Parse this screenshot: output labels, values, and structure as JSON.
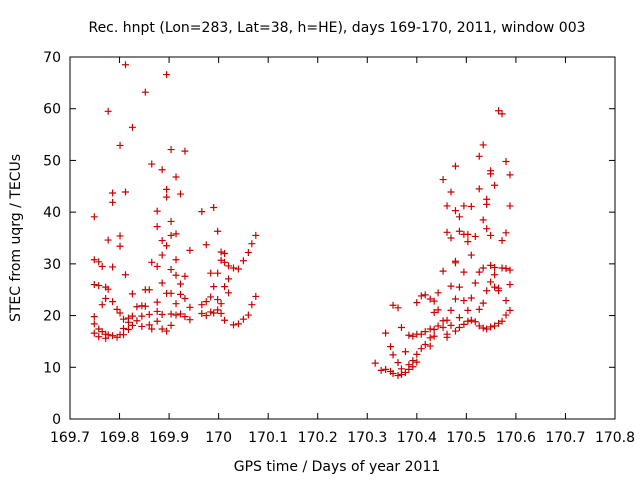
{
  "chart_data": {
    "type": "scatter",
    "title": "Rec. hnpt (Lon=283, Lat=38, h=HE), days 169-170, 2011, window 003",
    "xlabel": "GPS time / Days of year 2011",
    "ylabel": "STEC from uqrg / TECUs",
    "xlim": [
      169.7,
      170.8
    ],
    "ylim": [
      0,
      70
    ],
    "x_ticks": [
      169.7,
      169.8,
      169.9,
      170.0,
      170.1,
      170.2,
      170.3,
      170.4,
      170.5,
      170.6,
      170.7,
      170.8
    ],
    "x_tick_labels": [
      "169.7",
      "169.8",
      "169.9",
      "170",
      "170.1",
      "170.2",
      "170.3",
      "170.4",
      "170.5",
      "170.6",
      "170.7",
      "170.8"
    ],
    "y_ticks": [
      0,
      10,
      20,
      30,
      40,
      50,
      60,
      70
    ],
    "y_tick_labels": [
      "0",
      "10",
      "20",
      "30",
      "40",
      "50",
      "60",
      "70"
    ],
    "grid": false,
    "marker": "+",
    "marker_color": "#cc0000",
    "series": [
      {
        "points": [
          [
            169.749,
            39.1
          ],
          [
            169.749,
            30.8
          ],
          [
            169.749,
            26.0
          ],
          [
            169.749,
            19.8
          ],
          [
            169.749,
            18.4
          ],
          [
            169.749,
            16.6
          ],
          [
            169.758,
            30.4
          ],
          [
            169.758,
            25.8
          ],
          [
            169.758,
            17.4
          ],
          [
            169.758,
            15.9
          ],
          [
            169.765,
            29.5
          ],
          [
            169.765,
            22.1
          ],
          [
            169.765,
            16.9
          ],
          [
            169.772,
            25.5
          ],
          [
            169.772,
            23.3
          ],
          [
            169.772,
            16.4
          ],
          [
            169.772,
            15.6
          ],
          [
            169.777,
            59.5
          ],
          [
            169.777,
            34.6
          ],
          [
            169.777,
            25.1
          ],
          [
            169.777,
            16.3
          ],
          [
            169.786,
            43.7
          ],
          [
            169.786,
            41.9
          ],
          [
            169.786,
            29.4
          ],
          [
            169.786,
            22.7
          ],
          [
            169.786,
            16.1
          ],
          [
            169.795,
            21.2
          ],
          [
            169.795,
            15.8
          ],
          [
            169.801,
            52.9
          ],
          [
            169.801,
            35.4
          ],
          [
            169.801,
            33.4
          ],
          [
            169.801,
            20.5
          ],
          [
            169.801,
            16.3
          ],
          [
            169.808,
            19.3
          ],
          [
            169.808,
            17.5
          ],
          [
            169.808,
            16.3
          ],
          [
            169.812,
            68.5
          ],
          [
            169.812,
            43.9
          ],
          [
            169.812,
            27.9
          ],
          [
            169.818,
            19.5
          ],
          [
            169.818,
            18.7
          ],
          [
            169.818,
            17.3
          ],
          [
            169.826,
            56.4
          ],
          [
            169.826,
            24.2
          ],
          [
            169.826,
            19.9
          ],
          [
            169.826,
            18.1
          ],
          [
            169.835,
            21.7
          ],
          [
            169.835,
            19.0
          ],
          [
            169.845,
            21.9
          ],
          [
            169.845,
            19.9
          ],
          [
            169.845,
            17.9
          ],
          [
            169.852,
            63.2
          ],
          [
            169.852,
            25.0
          ],
          [
            169.852,
            21.8
          ],
          [
            169.86,
            25.0
          ],
          [
            169.86,
            20.2
          ],
          [
            169.86,
            18.2
          ],
          [
            169.865,
            49.3
          ],
          [
            169.865,
            30.3
          ],
          [
            169.865,
            17.4
          ],
          [
            169.876,
            40.2
          ],
          [
            169.876,
            37.2
          ],
          [
            169.876,
            29.5
          ],
          [
            169.876,
            22.6
          ],
          [
            169.876,
            20.8
          ],
          [
            169.876,
            18.9
          ],
          [
            169.886,
            48.2
          ],
          [
            169.886,
            34.5
          ],
          [
            169.886,
            31.7
          ],
          [
            169.886,
            26.3
          ],
          [
            169.886,
            20.2
          ],
          [
            169.886,
            17.4
          ],
          [
            169.895,
            66.6
          ],
          [
            169.895,
            44.4
          ],
          [
            169.895,
            42.9
          ],
          [
            169.895,
            33.5
          ],
          [
            169.895,
            24.3
          ],
          [
            169.895,
            17.0
          ],
          [
            169.904,
            52.1
          ],
          [
            169.904,
            38.2
          ],
          [
            169.904,
            35.5
          ],
          [
            169.904,
            28.9
          ],
          [
            169.904,
            24.3
          ],
          [
            169.904,
            20.3
          ],
          [
            169.904,
            18.1
          ],
          [
            169.914,
            46.8
          ],
          [
            169.914,
            35.8
          ],
          [
            169.914,
            30.8
          ],
          [
            169.914,
            27.8
          ],
          [
            169.914,
            22.3
          ],
          [
            169.914,
            20.1
          ],
          [
            169.923,
            43.5
          ],
          [
            169.923,
            26.1
          ],
          [
            169.923,
            24.1
          ],
          [
            169.923,
            20.3
          ],
          [
            169.932,
            51.8
          ],
          [
            169.932,
            27.6
          ],
          [
            169.932,
            23.3
          ],
          [
            169.932,
            19.8
          ],
          [
            169.942,
            32.6
          ],
          [
            169.942,
            21.6
          ],
          [
            169.942,
            19.2
          ],
          [
            169.966,
            40.1
          ],
          [
            169.966,
            22.1
          ],
          [
            169.966,
            20.4
          ],
          [
            169.975,
            33.7
          ],
          [
            169.975,
            22.7
          ],
          [
            169.975,
            20.0
          ],
          [
            169.984,
            28.2
          ],
          [
            169.984,
            23.6
          ],
          [
            169.984,
            20.7
          ],
          [
            169.99,
            40.9
          ],
          [
            169.99,
            25.6
          ],
          [
            169.99,
            20.5
          ],
          [
            169.998,
            36.3
          ],
          [
            169.998,
            28.2
          ],
          [
            169.998,
            23.1
          ],
          [
            169.998,
            21.1
          ],
          [
            170.005,
            32.3
          ],
          [
            170.005,
            30.7
          ],
          [
            170.005,
            22.3
          ],
          [
            170.005,
            20.4
          ],
          [
            170.012,
            32.0
          ],
          [
            170.012,
            30.3
          ],
          [
            170.012,
            25.6
          ],
          [
            170.012,
            19.1
          ],
          [
            170.02,
            29.6
          ],
          [
            170.02,
            27.1
          ],
          [
            170.02,
            24.4
          ],
          [
            170.03,
            29.2
          ],
          [
            170.03,
            18.2
          ],
          [
            170.04,
            29.0
          ],
          [
            170.04,
            18.4
          ],
          [
            170.05,
            30.6
          ],
          [
            170.05,
            19.3
          ],
          [
            170.06,
            32.2
          ],
          [
            170.06,
            20.1
          ],
          [
            170.067,
            33.9
          ],
          [
            170.067,
            22.1
          ],
          [
            170.075,
            35.5
          ],
          [
            170.075,
            23.7
          ],
          [
            170.316,
            10.8
          ],
          [
            170.328,
            9.4
          ],
          [
            170.337,
            16.6
          ],
          [
            170.337,
            9.6
          ],
          [
            170.347,
            14.0
          ],
          [
            170.347,
            9.2
          ],
          [
            170.352,
            22.0
          ],
          [
            170.352,
            12.4
          ],
          [
            170.352,
            8.8
          ],
          [
            170.362,
            21.5
          ],
          [
            170.362,
            10.9
          ],
          [
            170.362,
            8.4
          ],
          [
            170.369,
            17.7
          ],
          [
            170.369,
            9.7
          ],
          [
            170.369,
            8.6
          ],
          [
            170.377,
            13.0
          ],
          [
            170.377,
            9.0
          ],
          [
            170.384,
            16.2
          ],
          [
            170.384,
            10.5
          ],
          [
            170.384,
            9.6
          ],
          [
            170.392,
            16.0
          ],
          [
            170.392,
            11.3
          ],
          [
            170.392,
            10.1
          ],
          [
            170.4,
            22.5
          ],
          [
            170.4,
            16.4
          ],
          [
            170.4,
            12.5
          ],
          [
            170.4,
            11.0
          ],
          [
            170.409,
            23.8
          ],
          [
            170.409,
            16.4
          ],
          [
            170.409,
            13.6
          ],
          [
            170.417,
            24.0
          ],
          [
            170.417,
            16.9
          ],
          [
            170.417,
            14.4
          ],
          [
            170.427,
            23.2
          ],
          [
            170.427,
            17.4
          ],
          [
            170.427,
            15.7
          ],
          [
            170.427,
            14.1
          ],
          [
            170.435,
            22.8
          ],
          [
            170.435,
            20.6
          ],
          [
            170.435,
            17.3
          ],
          [
            170.435,
            16.0
          ],
          [
            170.443,
            24.4
          ],
          [
            170.443,
            21.1
          ],
          [
            170.443,
            18.0
          ],
          [
            170.453,
            28.6
          ],
          [
            170.453,
            46.3
          ],
          [
            170.453,
            19.0
          ],
          [
            170.453,
            17.7
          ],
          [
            170.461,
            36.1
          ],
          [
            170.461,
            41.2
          ],
          [
            170.461,
            19.1
          ],
          [
            170.461,
            16.4
          ],
          [
            170.461,
            15.8
          ],
          [
            170.469,
            35.0
          ],
          [
            170.469,
            43.9
          ],
          [
            170.469,
            25.7
          ],
          [
            170.469,
            21.0
          ],
          [
            170.469,
            18.1
          ],
          [
            170.478,
            48.9
          ],
          [
            170.478,
            40.3
          ],
          [
            170.478,
            30.5
          ],
          [
            170.478,
            30.2
          ],
          [
            170.478,
            23.2
          ],
          [
            170.478,
            17.0
          ],
          [
            170.486,
            39.1
          ],
          [
            170.486,
            36.3
          ],
          [
            170.486,
            25.5
          ],
          [
            170.486,
            19.6
          ],
          [
            170.486,
            17.7
          ],
          [
            170.495,
            41.2
          ],
          [
            170.495,
            35.7
          ],
          [
            170.495,
            28.4
          ],
          [
            170.495,
            22.9
          ],
          [
            170.495,
            18.3
          ],
          [
            170.503,
            35.7
          ],
          [
            170.503,
            34.3
          ],
          [
            170.503,
            21.0
          ],
          [
            170.503,
            18.9
          ],
          [
            170.51,
            41.1
          ],
          [
            170.51,
            31.7
          ],
          [
            170.51,
            23.4
          ],
          [
            170.51,
            19.1
          ],
          [
            170.518,
            35.3
          ],
          [
            170.518,
            26.3
          ],
          [
            170.518,
            18.8
          ],
          [
            170.526,
            44.5
          ],
          [
            170.526,
            50.8
          ],
          [
            170.526,
            28.4
          ],
          [
            170.526,
            21.2
          ],
          [
            170.526,
            18.0
          ],
          [
            170.534,
            53.0
          ],
          [
            170.534,
            38.5
          ],
          [
            170.534,
            29.2
          ],
          [
            170.534,
            22.4
          ],
          [
            170.534,
            17.6
          ],
          [
            170.541,
            42.5
          ],
          [
            170.541,
            41.5
          ],
          [
            170.541,
            36.8
          ],
          [
            170.541,
            24.8
          ],
          [
            170.541,
            17.4
          ],
          [
            170.549,
            48.0
          ],
          [
            170.549,
            47.4
          ],
          [
            170.549,
            35.5
          ],
          [
            170.549,
            29.7
          ],
          [
            170.549,
            26.5
          ],
          [
            170.549,
            17.8
          ],
          [
            170.557,
            45.2
          ],
          [
            170.557,
            29.3
          ],
          [
            170.557,
            27.9
          ],
          [
            170.557,
            25.5
          ],
          [
            170.557,
            18.0
          ],
          [
            170.565,
            59.6
          ],
          [
            170.565,
            25.3
          ],
          [
            170.565,
            18.5
          ],
          [
            170.565,
            24.8
          ],
          [
            170.572,
            59.0
          ],
          [
            170.572,
            34.5
          ],
          [
            170.572,
            29.2
          ],
          [
            170.572,
            18.9
          ],
          [
            170.58,
            49.8
          ],
          [
            170.58,
            36.0
          ],
          [
            170.58,
            29.1
          ],
          [
            170.58,
            22.9
          ],
          [
            170.58,
            20.1
          ],
          [
            170.588,
            47.2
          ],
          [
            170.588,
            41.2
          ],
          [
            170.588,
            28.8
          ],
          [
            170.588,
            26.0
          ],
          [
            170.588,
            21.0
          ]
        ]
      }
    ]
  }
}
